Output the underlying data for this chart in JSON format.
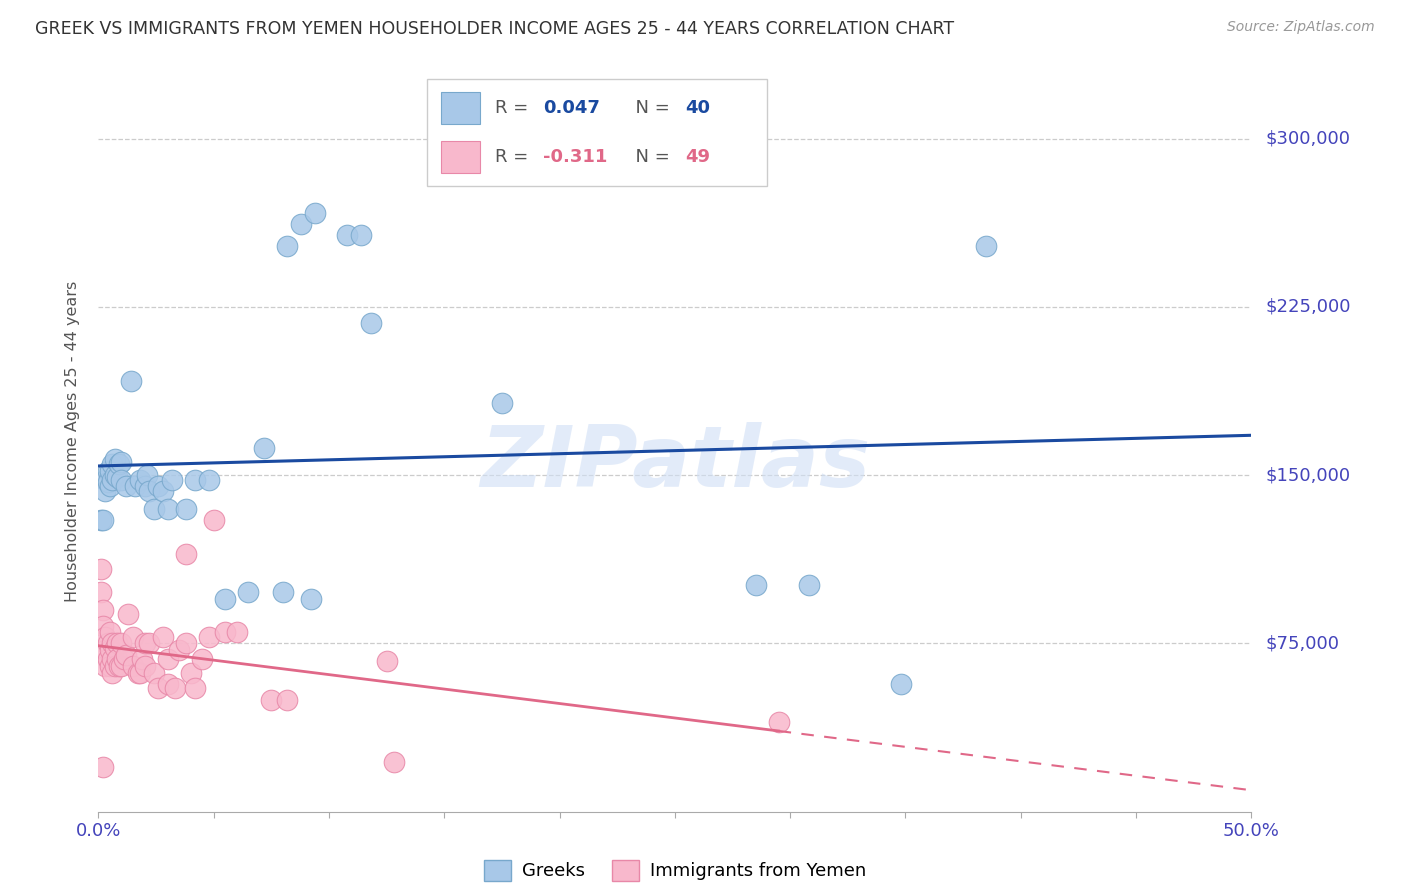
{
  "title": "GREEK VS IMMIGRANTS FROM YEMEN HOUSEHOLDER INCOME AGES 25 - 44 YEARS CORRELATION CHART",
  "source": "Source: ZipAtlas.com",
  "ylabel": "Householder Income Ages 25 - 44 years",
  "ytick_labels": [
    "$75,000",
    "$150,000",
    "$225,000",
    "$300,000"
  ],
  "ytick_values": [
    75000,
    150000,
    225000,
    300000
  ],
  "ymin": 0,
  "ymax": 330000,
  "xmin": 0.0,
  "xmax": 0.5,
  "legend_label1": "Greeks",
  "legend_label2": "Immigrants from Yemen",
  "R1": 0.047,
  "N1": 40,
  "R2": -0.311,
  "N2": 49,
  "color_blue_fill": "#a8c8e8",
  "color_pink_fill": "#f8b8cc",
  "color_blue_edge": "#78a8cc",
  "color_pink_edge": "#e888a8",
  "color_blue_line": "#1a4aa0",
  "color_pink_line": "#e06888",
  "color_axis_text": "#4444bb",
  "watermark_color": "#d0dff5",
  "greek_x": [
    0.001,
    0.002,
    0.003,
    0.003,
    0.004,
    0.004,
    0.005,
    0.005,
    0.006,
    0.006,
    0.007,
    0.007,
    0.008,
    0.009,
    0.01,
    0.01,
    0.012,
    0.014,
    0.016,
    0.018,
    0.02,
    0.021,
    0.022,
    0.024,
    0.026,
    0.028,
    0.03,
    0.032,
    0.038,
    0.042,
    0.048,
    0.055,
    0.065,
    0.072,
    0.08,
    0.092,
    0.082,
    0.088,
    0.094,
    0.108,
    0.114,
    0.118,
    0.175,
    0.385,
    0.285,
    0.308,
    0.348
  ],
  "greek_y": [
    130000,
    130000,
    148000,
    143000,
    152000,
    147000,
    152000,
    145000,
    155000,
    148000,
    150000,
    157000,
    149000,
    155000,
    156000,
    148000,
    145000,
    192000,
    145000,
    148000,
    145000,
    150000,
    143000,
    135000,
    145000,
    143000,
    135000,
    148000,
    135000,
    148000,
    148000,
    95000,
    98000,
    162000,
    98000,
    95000,
    252000,
    262000,
    267000,
    257000,
    257000,
    218000,
    182000,
    252000,
    101000,
    101000,
    57000
  ],
  "yemen_x": [
    0.001,
    0.001,
    0.002,
    0.002,
    0.003,
    0.003,
    0.003,
    0.004,
    0.004,
    0.005,
    0.005,
    0.005,
    0.006,
    0.006,
    0.006,
    0.007,
    0.007,
    0.008,
    0.008,
    0.009,
    0.01,
    0.01,
    0.011,
    0.012,
    0.013,
    0.015,
    0.015,
    0.017,
    0.018,
    0.019,
    0.02,
    0.02,
    0.022,
    0.024,
    0.026,
    0.028,
    0.03,
    0.03,
    0.033,
    0.035,
    0.038,
    0.04,
    0.042,
    0.045,
    0.048,
    0.055,
    0.06,
    0.075,
    0.082,
    0.125,
    0.128,
    0.295,
    0.038,
    0.05,
    0.002
  ],
  "yemen_y": [
    108000,
    98000,
    90000,
    83000,
    78000,
    72000,
    65000,
    75000,
    68000,
    80000,
    72000,
    65000,
    75000,
    68000,
    62000,
    73000,
    65000,
    75000,
    68000,
    65000,
    75000,
    65000,
    68000,
    70000,
    88000,
    78000,
    65000,
    62000,
    62000,
    68000,
    75000,
    65000,
    75000,
    62000,
    55000,
    78000,
    68000,
    57000,
    55000,
    72000,
    75000,
    62000,
    55000,
    68000,
    78000,
    80000,
    80000,
    50000,
    50000,
    67000,
    22000,
    40000,
    115000,
    130000,
    20000
  ]
}
